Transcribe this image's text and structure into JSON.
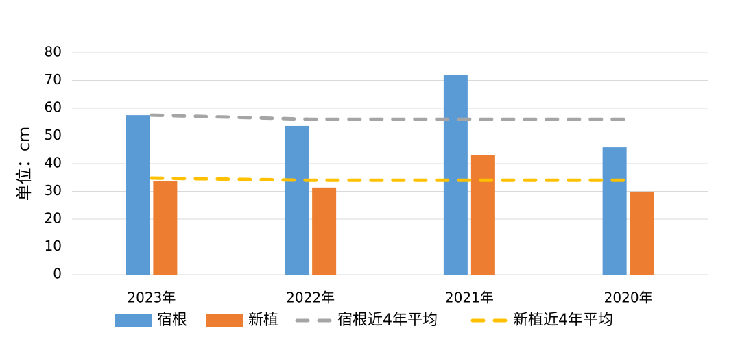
{
  "chart_data": {
    "type": "bar",
    "y_label": "单位：cm",
    "categories": [
      "2023年",
      "2022年",
      "2021年",
      "2020年"
    ],
    "series": [
      {
        "name": "宿根",
        "type": "bar",
        "color": "#5b9bd5",
        "values": [
          57.5,
          53.6,
          72.1,
          45.9
        ]
      },
      {
        "name": "新植",
        "type": "bar",
        "color": "#ed7d31",
        "values": [
          33.8,
          31.4,
          43.2,
          29.9
        ]
      },
      {
        "name": "宿根近4年平均",
        "type": "line",
        "dashed": true,
        "color": "#a5a5a5",
        "values": [
          57.5,
          56,
          56,
          56
        ]
      },
      {
        "name": "新植近4年平均",
        "type": "line",
        "dashed": true,
        "color": "#ffc000",
        "values": [
          34.8,
          34,
          34,
          34
        ]
      }
    ],
    "ylim": [
      0,
      80
    ],
    "yticks": [
      0,
      10,
      20,
      30,
      40,
      50,
      60,
      70,
      80
    ],
    "grid": true,
    "legend": "bottom"
  }
}
